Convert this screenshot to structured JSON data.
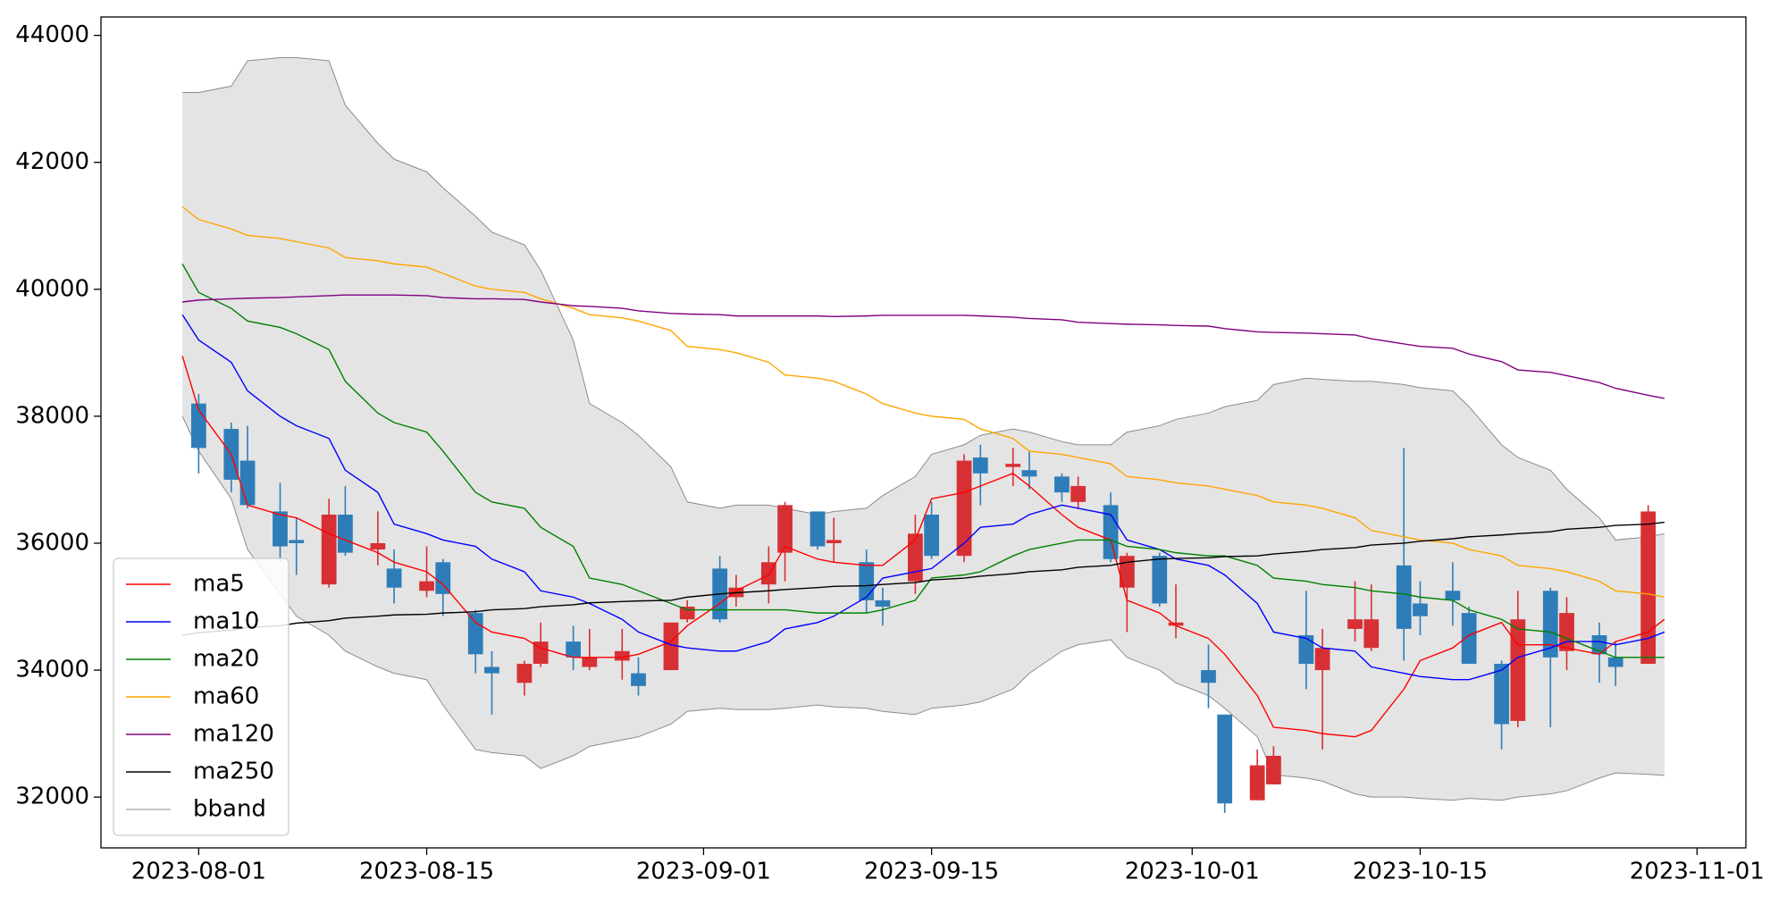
{
  "chart_data": {
    "type": "candlestick",
    "x": [
      "2023-07-31",
      "2023-08-01",
      "2023-08-03",
      "2023-08-04",
      "2023-08-06",
      "2023-08-07",
      "2023-08-09",
      "2023-08-10",
      "2023-08-12",
      "2023-08-13",
      "2023-08-15",
      "2023-08-16",
      "2023-08-18",
      "2023-08-19",
      "2023-08-21",
      "2023-08-22",
      "2023-08-24",
      "2023-08-25",
      "2023-08-27",
      "2023-08-28",
      "2023-08-30",
      "2023-08-31",
      "2023-09-02",
      "2023-09-03",
      "2023-09-05",
      "2023-09-06",
      "2023-09-08",
      "2023-09-09",
      "2023-09-11",
      "2023-09-12",
      "2023-09-14",
      "2023-09-15",
      "2023-09-17",
      "2023-09-18",
      "2023-09-20",
      "2023-09-21",
      "2023-09-23",
      "2023-09-24",
      "2023-09-26",
      "2023-09-27",
      "2023-09-29",
      "2023-09-30",
      "2023-10-02",
      "2023-10-03",
      "2023-10-05",
      "2023-10-06",
      "2023-10-08",
      "2023-10-09",
      "2023-10-11",
      "2023-10-12",
      "2023-10-14",
      "2023-10-15",
      "2023-10-17",
      "2023-10-18",
      "2023-10-20",
      "2023-10-21",
      "2023-10-23",
      "2023-10-24",
      "2023-10-26",
      "2023-10-27",
      "2023-10-29",
      "2023-10-30"
    ],
    "open": [
      null,
      38200,
      37800,
      37300,
      36500,
      36050,
      35350,
      36450,
      35900,
      35600,
      35250,
      35700,
      34900,
      34050,
      33800,
      34100,
      34450,
      34050,
      34150,
      33950,
      34000,
      34800,
      35600,
      35150,
      35350,
      35850,
      36500,
      36000,
      35700,
      35100,
      35400,
      36450,
      35800,
      37350,
      37200,
      37150,
      37050,
      36650,
      36600,
      35300,
      35800,
      34700,
      34000,
      33300,
      31950,
      32200,
      34550,
      34000,
      34650,
      34350,
      35650,
      35050,
      35250,
      34900,
      34100,
      33200,
      35250,
      34300,
      34550,
      34200,
      34100,
      null
    ],
    "high": [
      null,
      38350,
      37900,
      37850,
      36950,
      36400,
      36700,
      36900,
      36500,
      35900,
      35950,
      35750,
      34950,
      34300,
      34150,
      34750,
      34700,
      34650,
      34650,
      34200,
      34750,
      35100,
      35800,
      35500,
      35950,
      36650,
      36500,
      36400,
      35900,
      35300,
      36450,
      36650,
      37400,
      37550,
      37500,
      37450,
      37100,
      37050,
      36800,
      35850,
      35850,
      35350,
      34400,
      33300,
      32750,
      32800,
      35250,
      34650,
      35400,
      35350,
      37500,
      35400,
      35700,
      35000,
      34150,
      35250,
      35300,
      35150,
      34750,
      34450,
      36600,
      null
    ],
    "low": [
      null,
      37100,
      36800,
      36550,
      35700,
      35500,
      35300,
      35800,
      35650,
      35050,
      35150,
      34850,
      33950,
      33300,
      33600,
      34050,
      34000,
      34000,
      33850,
      33600,
      34000,
      34750,
      34750,
      35000,
      35050,
      35400,
      35900,
      35700,
      34900,
      34700,
      35200,
      35750,
      35700,
      36600,
      36900,
      36850,
      36650,
      36550,
      35700,
      34600,
      35000,
      34500,
      33400,
      31750,
      31950,
      32200,
      33700,
      32750,
      34450,
      34300,
      34150,
      34550,
      34700,
      34100,
      32750,
      33100,
      33100,
      34000,
      33800,
      33750,
      34100,
      null
    ],
    "close": [
      null,
      37500,
      37000,
      36600,
      35950,
      36000,
      36450,
      35850,
      36000,
      35300,
      35400,
      35200,
      34250,
      33950,
      34100,
      34450,
      34200,
      34200,
      34300,
      33750,
      34750,
      35000,
      34800,
      35300,
      35700,
      36600,
      35950,
      36050,
      35100,
      35000,
      36150,
      35800,
      37300,
      37100,
      37250,
      37050,
      36800,
      36900,
      35750,
      35800,
      35050,
      34750,
      33800,
      31900,
      32500,
      32650,
      34100,
      34350,
      34800,
      34800,
      34650,
      34850,
      35100,
      34100,
      33150,
      34800,
      34200,
      34900,
      34250,
      34050,
      36500,
      null
    ],
    "up_color": "#d73034",
    "down_color": "#2e7db8",
    "series": [
      {
        "name": "ma5",
        "color": "#ff0000",
        "values": [
          38950,
          38100,
          37400,
          36600,
          36450,
          36400,
          36150,
          36050,
          35850,
          35700,
          35550,
          35350,
          34750,
          34600,
          34500,
          34350,
          34200,
          34200,
          34200,
          34250,
          34450,
          34700,
          35050,
          35250,
          35500,
          35950,
          35750,
          35700,
          35650,
          35650,
          36050,
          36700,
          36800,
          36900,
          37100,
          36900,
          36450,
          36250,
          36050,
          35100,
          34900,
          34700,
          34500,
          34250,
          33600,
          33100,
          33050,
          33000,
          32950,
          33050,
          33700,
          34150,
          34350,
          34550,
          34750,
          34400,
          34400,
          34350,
          34250,
          34450,
          34600,
          34800
        ]
      },
      {
        "name": "ma10",
        "color": "#0000ff",
        "values": [
          39600,
          39200,
          38850,
          38400,
          38000,
          37850,
          37650,
          37150,
          36800,
          36300,
          36150,
          36050,
          35950,
          35750,
          35550,
          35250,
          35150,
          35050,
          34800,
          34600,
          34400,
          34350,
          34300,
          34300,
          34450,
          34650,
          34750,
          34850,
          35150,
          35450,
          35550,
          35600,
          36000,
          36250,
          36300,
          36450,
          36600,
          36550,
          36450,
          36050,
          35900,
          35750,
          35650,
          35500,
          35050,
          34600,
          34500,
          34350,
          34300,
          34050,
          33950,
          33900,
          33850,
          33850,
          34000,
          34200,
          34350,
          34450,
          34450,
          34400,
          34500,
          34600
        ]
      },
      {
        "name": "ma20",
        "color": "#008000",
        "values": [
          40400,
          39950,
          39700,
          39500,
          39400,
          39300,
          39050,
          38550,
          38050,
          37900,
          37750,
          37450,
          36800,
          36650,
          36550,
          36250,
          35950,
          35450,
          35350,
          35250,
          35050,
          34950,
          34950,
          34950,
          34950,
          34950,
          34900,
          34900,
          34900,
          34950,
          35100,
          35450,
          35500,
          35550,
          35800,
          35900,
          36000,
          36050,
          36050,
          35950,
          35900,
          35850,
          35800,
          35800,
          35650,
          35450,
          35400,
          35350,
          35300,
          35250,
          35200,
          35150,
          35100,
          34950,
          34800,
          34650,
          34600,
          34500,
          34300,
          34200,
          34200,
          34200
        ]
      },
      {
        "name": "ma60",
        "color": "#ffa500",
        "values": [
          41300,
          41100,
          40950,
          40850,
          40800,
          40750,
          40650,
          40500,
          40450,
          40400,
          40350,
          40250,
          40050,
          40000,
          39950,
          39850,
          39700,
          39600,
          39550,
          39500,
          39350,
          39100,
          39050,
          39000,
          38850,
          38650,
          38600,
          38550,
          38350,
          38200,
          38050,
          38000,
          37950,
          37800,
          37650,
          37450,
          37400,
          37350,
          37250,
          37050,
          37000,
          36950,
          36900,
          36850,
          36750,
          36650,
          36600,
          36550,
          36400,
          36200,
          36100,
          36050,
          36000,
          35900,
          35800,
          35650,
          35600,
          35550,
          35400,
          35250,
          35200,
          35150
        ]
      },
      {
        "name": "ma120",
        "color": "#800080",
        "values": [
          39800,
          39830,
          39850,
          39860,
          39870,
          39880,
          39900,
          39910,
          39910,
          39910,
          39900,
          39870,
          39850,
          39850,
          39840,
          39800,
          39740,
          39730,
          39700,
          39660,
          39620,
          39610,
          39600,
          39580,
          39580,
          39580,
          39580,
          39570,
          39580,
          39590,
          39590,
          39590,
          39590,
          39580,
          39560,
          39540,
          39520,
          39480,
          39460,
          39450,
          39440,
          39430,
          39420,
          39380,
          39330,
          39320,
          39310,
          39300,
          39280,
          39220,
          39140,
          39100,
          39070,
          38980,
          38860,
          38730,
          38690,
          38640,
          38530,
          38440,
          38330,
          38280
        ]
      },
      {
        "name": "ma250",
        "color": "#000000",
        "values": [
          34550,
          34590,
          34630,
          34670,
          34700,
          34740,
          34780,
          34820,
          34850,
          34870,
          34880,
          34900,
          34920,
          34950,
          34970,
          35000,
          35030,
          35060,
          35080,
          35090,
          35100,
          35150,
          35200,
          35220,
          35250,
          35270,
          35300,
          35320,
          35330,
          35350,
          35380,
          35420,
          35450,
          35480,
          35520,
          35550,
          35580,
          35620,
          35650,
          35700,
          35750,
          35760,
          35770,
          35790,
          35800,
          35830,
          35870,
          35900,
          35930,
          35970,
          36000,
          36030,
          36070,
          36100,
          36130,
          36150,
          36180,
          36220,
          36250,
          36280,
          36300,
          36330
        ]
      }
    ],
    "band": {
      "name": "bband",
      "color": "#8c8c8c",
      "fill": "#e4e4e4",
      "upper": [
        43100,
        43100,
        43200,
        43600,
        43650,
        43650,
        43600,
        42900,
        42300,
        42050,
        41850,
        41600,
        41150,
        40900,
        40700,
        40300,
        39200,
        38200,
        37900,
        37700,
        37200,
        36650,
        36550,
        36600,
        36600,
        36550,
        36450,
        36500,
        36550,
        36750,
        37050,
        37400,
        37550,
        37700,
        37800,
        37750,
        37600,
        37550,
        37550,
        37750,
        37850,
        37950,
        38050,
        38150,
        38250,
        38500,
        38600,
        38580,
        38550,
        38550,
        38500,
        38450,
        38400,
        38150,
        37550,
        37350,
        37150,
        36850,
        36400,
        36050,
        36100,
        36150
      ],
      "lower": [
        38000,
        37450,
        36700,
        35900,
        35200,
        34850,
        34550,
        34300,
        34050,
        33950,
        33850,
        33450,
        32750,
        32700,
        32650,
        32450,
        32650,
        32800,
        32900,
        32950,
        33150,
        33350,
        33400,
        33380,
        33380,
        33400,
        33450,
        33420,
        33400,
        33350,
        33300,
        33400,
        33450,
        33500,
        33700,
        33950,
        34300,
        34400,
        34480,
        34200,
        34000,
        33800,
        33600,
        33400,
        32950,
        32350,
        32300,
        32250,
        32050,
        32000,
        32000,
        31980,
        31950,
        31980,
        31950,
        32000,
        32050,
        32100,
        32300,
        32380,
        32360,
        32340
      ]
    },
    "xlim": [
      "2023-07-26",
      "2023-11-04"
    ],
    "xticks": [
      "2023-08-01",
      "2023-08-15",
      "2023-09-01",
      "2023-09-15",
      "2023-10-01",
      "2023-10-15",
      "2023-11-01"
    ],
    "ylim": [
      31200,
      44290
    ],
    "yticks": [
      32000,
      34000,
      36000,
      38000,
      40000,
      42000,
      44000
    ],
    "legend": "lower left"
  }
}
